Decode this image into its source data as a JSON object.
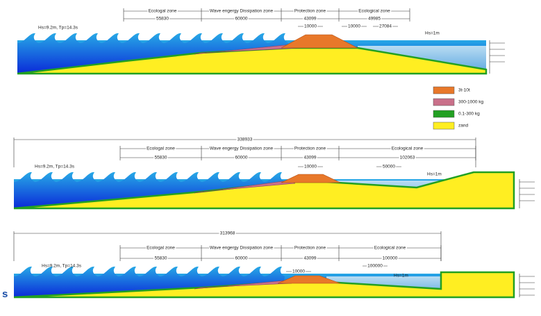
{
  "sections": [
    {
      "zones": [
        {
          "label": "Ecologal zone",
          "length": 55830
        },
        {
          "label": "Wave engergy Dissipation zone",
          "length": 60000
        },
        {
          "label": "Protection zone",
          "length": 43099
        },
        {
          "label": "Ecological zone",
          "length": 49985
        }
      ],
      "sub_dimensions": [
        10000,
        10000,
        27084
      ],
      "wave_left": "Hs=9.2m, Tp=14.3s",
      "wave_right": "Hs=1m"
    },
    {
      "overall_length": 338933,
      "zones": [
        {
          "label": "Ecologal zone",
          "length": 55830
        },
        {
          "label": "Wave engergy Dissipation zone",
          "length": 60000
        },
        {
          "label": "Protection zone",
          "length": 43099
        },
        {
          "label": "Ecological zone",
          "length": 102063
        }
      ],
      "sub_dimensions": [
        10000,
        50000
      ],
      "wave_left": "Hs=9.2m, Tp=14.3s",
      "wave_right": "Hs=1m"
    },
    {
      "overall_length": 313968,
      "zones": [
        {
          "label": "Ecologal zone",
          "length": 55830
        },
        {
          "label": "Wave engergy Dissipation zone",
          "length": 60000
        },
        {
          "label": "Protection zone",
          "length": 43099
        },
        {
          "label": "Ecological zone",
          "length": 100000
        }
      ],
      "sub_dimensions": [
        10000,
        100000
      ],
      "wave_left": "Hs=9.2m, Tp=14.3s",
      "wave_right": "Hs=1m"
    }
  ],
  "legend": [
    {
      "label": "3t-10t",
      "color": "#e8782a"
    },
    {
      "label": "300-1000 kg",
      "color": "#c9708a"
    },
    {
      "label": "0.1-300 kg",
      "color": "#22a022"
    },
    {
      "label": "zand",
      "color": "#ffee22"
    }
  ],
  "footer_fragment": "s"
}
